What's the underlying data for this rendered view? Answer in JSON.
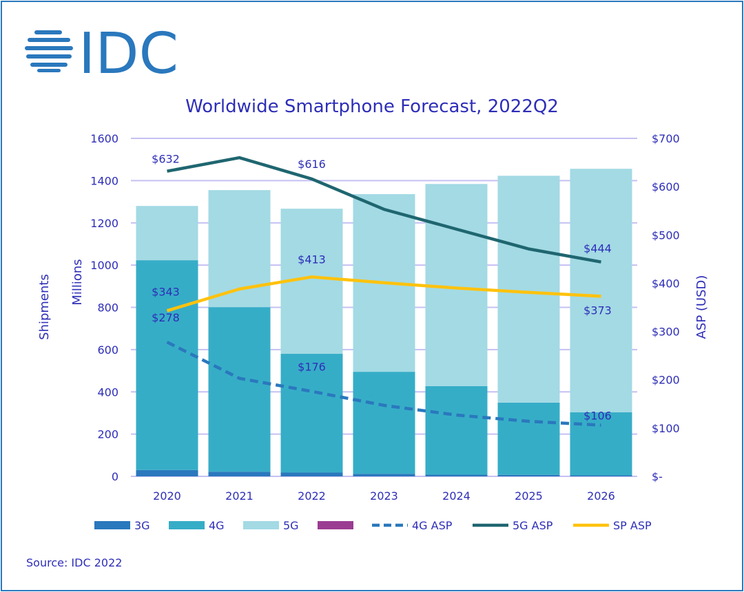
{
  "logo_text": "IDC",
  "source": "Source: IDC 2022",
  "chart_data": {
    "type": "bar",
    "title": "Worldwide Smartphone Forecast, 2022Q2",
    "categories": [
      "2020",
      "2021",
      "2022",
      "2023",
      "2024",
      "2025",
      "2026"
    ],
    "ylabel_left": [
      "Shipments",
      "Millions"
    ],
    "ylabel_right": "ASP (USD)",
    "ylim": [
      0,
      1600
    ],
    "yticks": [
      "0",
      "200",
      "400",
      "600",
      "800",
      "1000",
      "1200",
      "1400",
      "1600"
    ],
    "y2lim": [
      0,
      700
    ],
    "y2ticks": [
      "$-",
      "$100",
      "$200",
      "$300",
      "$400",
      "$500",
      "$600",
      "$700"
    ],
    "grid": true,
    "legend_position": "bottom",
    "bar_series": [
      {
        "name": "3G",
        "color": "#2a78bd",
        "values": [
          30,
          22,
          18,
          12,
          8,
          7,
          5
        ]
      },
      {
        "name": "4G",
        "color": "#36adc7",
        "values": [
          993,
          779,
          562,
          483,
          419,
          342,
          298
        ]
      },
      {
        "name": "5G",
        "color": "#a3dae4",
        "values": [
          257,
          554,
          687,
          841,
          957,
          1074,
          1153
        ]
      },
      {
        "name": "",
        "color": "#9b3c93",
        "values": [
          0,
          0,
          0,
          0,
          0,
          0,
          0
        ]
      }
    ],
    "line_series": [
      {
        "name": "4G ASP",
        "color": "#2a78bd",
        "dashed": true,
        "values": [
          278,
          203,
          176,
          147,
          127,
          114,
          106
        ]
      },
      {
        "name": "5G ASP",
        "color": "#1f6670",
        "dashed": false,
        "values": [
          632,
          660,
          616,
          553,
          512,
          471,
          444
        ]
      },
      {
        "name": "SP ASP",
        "color": "#ffc20e",
        "dashed": false,
        "values": [
          343,
          388,
          413,
          401,
          390,
          381,
          373
        ]
      }
    ],
    "data_labels": [
      {
        "series": "5G ASP",
        "index": 0,
        "text": "$632"
      },
      {
        "series": "5G ASP",
        "index": 2,
        "text": "$616"
      },
      {
        "series": "5G ASP",
        "index": 6,
        "text": "$444"
      },
      {
        "series": "SP ASP",
        "index": 0,
        "text": "$343"
      },
      {
        "series": "SP ASP",
        "index": 2,
        "text": "$413"
      },
      {
        "series": "SP ASP",
        "index": 6,
        "text": "$373"
      },
      {
        "series": "4G ASP",
        "index": 0,
        "text": "$278"
      },
      {
        "series": "4G ASP",
        "index": 2,
        "text": "$176"
      },
      {
        "series": "4G ASP",
        "index": 6,
        "text": "$106"
      }
    ]
  }
}
